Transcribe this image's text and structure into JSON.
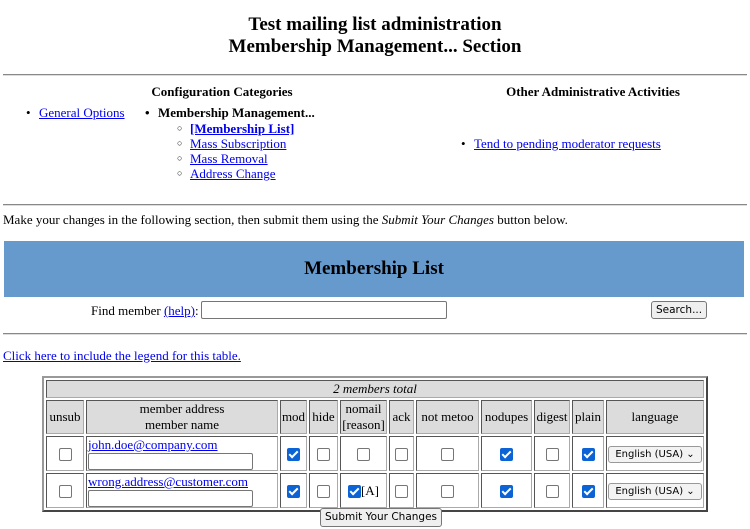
{
  "header": {
    "title": "Test mailing list administration",
    "subtitle": "Membership Management... Section"
  },
  "nav": {
    "config_heading": "Configuration Categories",
    "other_heading": "Other Administrative Activities",
    "general_options": "General Options",
    "membership_management": "Membership Management...",
    "sub_items": [
      "[Membership List]",
      "Mass Subscription",
      "Mass Removal",
      "Address Change"
    ],
    "pending": "Tend to pending moderator requests"
  },
  "intro": {
    "before": "Make your changes in the following section, then submit them using the ",
    "emph": "Submit Your Changes",
    "after": " button below."
  },
  "section_title": "Membership List",
  "find": {
    "label": "Find member ",
    "help": "(help)",
    "colon": ":",
    "value": "",
    "search_button": "Search..."
  },
  "legend_link": "Click here to include the legend for this table.",
  "table": {
    "total": "2 members total",
    "headers": {
      "unsub": "unsub",
      "addr1": "member address",
      "addr2": "member name",
      "mod": "mod",
      "hide": "hide",
      "nomail1": "nomail",
      "nomail2": "[reason]",
      "ack": "ack",
      "notmetoo": "not metoo",
      "nodupes": "nodupes",
      "digest": "digest",
      "plain": "plain",
      "language": "language"
    },
    "rows": [
      {
        "email": "john.doe@company.com",
        "name": "",
        "unsub": false,
        "mod": true,
        "hide": false,
        "nomail": false,
        "reason": "",
        "ack": false,
        "notmetoo": false,
        "nodupes": true,
        "digest": false,
        "plain": true,
        "language": "English (USA)"
      },
      {
        "email": "wrong.address@customer.com",
        "name": "",
        "unsub": false,
        "mod": true,
        "hide": false,
        "nomail": true,
        "reason": "[A]",
        "ack": false,
        "notmetoo": false,
        "nodupes": true,
        "digest": false,
        "plain": true,
        "language": "English (USA)"
      }
    ]
  },
  "submit_button": "Submit Your Changes",
  "colors": {
    "band": "#6699cc",
    "link": "#0000ee",
    "checkbox": "#0b63d6"
  }
}
